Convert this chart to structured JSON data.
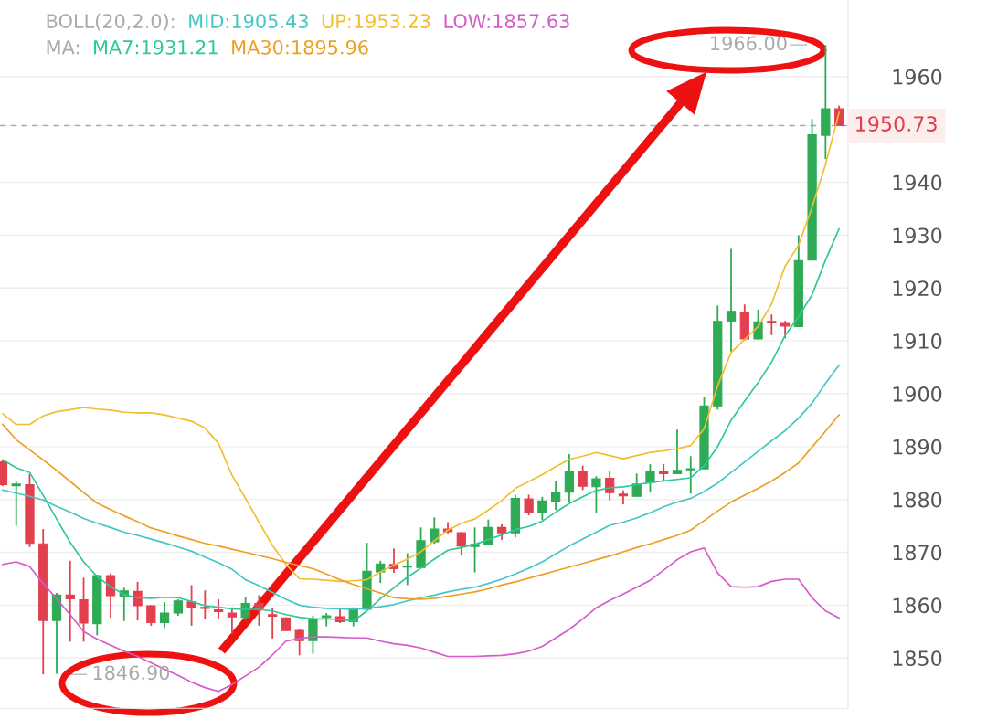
{
  "chart_data": {
    "type": "candlestick",
    "categories": [
      null,
      null,
      null,
      null,
      null,
      null,
      null,
      null,
      null,
      null,
      null,
      null,
      null,
      null,
      null,
      null,
      null,
      null,
      null,
      null,
      null,
      null,
      null,
      null,
      null,
      null,
      null,
      null,
      null,
      null,
      null,
      null,
      null,
      null,
      null,
      null,
      null,
      null,
      null,
      null,
      null,
      null,
      null,
      null,
      null,
      null,
      null,
      null,
      null,
      null,
      null,
      null,
      null,
      null,
      null,
      null,
      null,
      null,
      null,
      null,
      null,
      null,
      null
    ],
    "ohlc": [
      [
        1887.1,
        1887.5,
        1882.5,
        1882.8
      ],
      [
        1882.6,
        1883.4,
        1875.0,
        1882.9
      ],
      [
        1882.8,
        1884.8,
        1871.0,
        1871.7
      ],
      [
        1871.6,
        1874.4,
        1846.9,
        1857.1
      ],
      [
        1857.1,
        1862.3,
        1847.0,
        1861.9
      ],
      [
        1861.9,
        1868.4,
        1853.1,
        1861.2
      ],
      [
        1861.0,
        1865.2,
        1853.1,
        1856.6
      ],
      [
        1856.5,
        1865.7,
        1854.3,
        1865.6
      ],
      [
        1865.6,
        1866.0,
        1857.6,
        1861.8
      ],
      [
        1861.6,
        1863.3,
        1857.0,
        1862.7
      ],
      [
        1862.6,
        1864.4,
        1857.1,
        1859.9
      ],
      [
        1859.9,
        1860.0,
        1856.1,
        1856.7
      ],
      [
        1856.7,
        1860.6,
        1855.7,
        1858.5
      ],
      [
        1858.5,
        1861.1,
        1858.0,
        1860.8
      ],
      [
        1860.6,
        1863.8,
        1856.1,
        1859.5
      ],
      [
        1859.6,
        1862.8,
        1857.3,
        1859.4
      ],
      [
        1859.1,
        1861.1,
        1857.4,
        1858.8
      ],
      [
        1858.5,
        1859.6,
        1854.5,
        1857.8
      ],
      [
        1857.7,
        1861.6,
        1857.1,
        1860.3
      ],
      [
        1860.3,
        1861.9,
        1856.1,
        1859.2
      ],
      [
        1858.2,
        1859.5,
        1853.7,
        1857.9
      ],
      [
        1857.6,
        1857.7,
        1855.2,
        1855.2
      ],
      [
        1855.2,
        1855.5,
        1850.5,
        1853.3
      ],
      [
        1853.3,
        1858.0,
        1850.8,
        1857.2
      ],
      [
        1857.7,
        1858.5,
        1856.0,
        1858.0
      ],
      [
        1857.8,
        1859.2,
        1856.6,
        1856.9
      ],
      [
        1856.9,
        1859.6,
        1856.0,
        1859.3
      ],
      [
        1859.2,
        1871.8,
        1859.2,
        1866.4
      ],
      [
        1866.3,
        1868.4,
        1864.2,
        1867.8
      ],
      [
        1867.7,
        1870.7,
        1866.1,
        1866.9
      ],
      [
        1867.2,
        1869.8,
        1863.8,
        1867.4
      ],
      [
        1867.1,
        1874.7,
        1867.1,
        1872.2
      ],
      [
        1872.0,
        1876.6,
        1871.6,
        1874.4
      ],
      [
        1874.4,
        1875.7,
        1873.6,
        1873.9
      ],
      [
        1873.7,
        1873.8,
        1869.5,
        1871.2
      ],
      [
        1871.1,
        1874.7,
        1866.2,
        1871.5
      ],
      [
        1871.4,
        1876.2,
        1871.3,
        1874.7
      ],
      [
        1874.7,
        1875.3,
        1872.4,
        1873.7
      ],
      [
        1873.7,
        1880.9,
        1872.8,
        1880.2
      ],
      [
        1880.1,
        1880.9,
        1877.0,
        1877.6
      ],
      [
        1877.6,
        1880.5,
        1876.1,
        1879.7
      ],
      [
        1879.6,
        1883.4,
        1878.0,
        1881.4
      ],
      [
        1881.4,
        1888.6,
        1879.6,
        1885.3
      ],
      [
        1885.3,
        1886.4,
        1881.8,
        1882.5
      ],
      [
        1882.4,
        1884.4,
        1877.4,
        1883.9
      ],
      [
        1884.0,
        1885.5,
        1879.8,
        1881.3
      ],
      [
        1881.0,
        1881.7,
        1879.1,
        1880.7
      ],
      [
        1880.6,
        1884.9,
        1880.6,
        1882.9
      ],
      [
        1883.2,
        1886.7,
        1881.3,
        1885.2
      ],
      [
        1885.3,
        1886.7,
        1883.6,
        1884.9
      ],
      [
        1884.9,
        1893.2,
        1884.9,
        1885.5
      ],
      [
        1885.6,
        1888.2,
        1881.1,
        1885.8
      ],
      [
        1885.8,
        1899.4,
        1885.8,
        1897.7
      ],
      [
        1897.7,
        1916.7,
        1897.0,
        1913.7
      ],
      [
        1913.7,
        1927.4,
        1908.0,
        1915.6
      ],
      [
        1915.4,
        1916.9,
        1910.1,
        1910.4
      ],
      [
        1910.4,
        1915.9,
        1910.3,
        1913.6
      ],
      [
        1913.7,
        1915.0,
        1911.1,
        1913.4
      ],
      [
        1913.3,
        1913.8,
        1910.5,
        1912.8
      ],
      [
        1912.7,
        1930.0,
        1912.7,
        1925.2
      ],
      [
        1925.3,
        1952.0,
        1925.3,
        1949.0
      ],
      [
        1948.9,
        1966.0,
        1944.4,
        1953.9
      ],
      [
        1953.9,
        1954.5,
        1950.73,
        1950.73
      ]
    ],
    "series": [
      {
        "type": "line",
        "name": "MID:1905.43",
        "color": "#44c6c4",
        "values": [
          1881.8,
          1881.2,
          1880.6,
          1879.9,
          1878.7,
          1877.6,
          1876.4,
          1875.5,
          1874.7,
          1873.8,
          1873.2,
          1872.5,
          1871.8,
          1871.0,
          1870.2,
          1869.1,
          1868.0,
          1866.8,
          1864.8,
          1863.7,
          1862.4,
          1861.1,
          1860.0,
          1859.6,
          1859.4,
          1859.3,
          1859.2,
          1859.4,
          1859.7,
          1860.1,
          1860.8,
          1861.4,
          1861.9,
          1862.5,
          1863.0,
          1863.4,
          1864.1,
          1864.9,
          1865.9,
          1867.0,
          1868.2,
          1869.7,
          1871.2,
          1872.5,
          1873.8,
          1875.1,
          1875.7,
          1876.5,
          1877.5,
          1878.6,
          1879.5,
          1880.2,
          1881.5,
          1883.1,
          1885.1,
          1887.1,
          1889.1,
          1891.1,
          1893.0,
          1895.4,
          1898.2,
          1902.0,
          1905.4
        ]
      },
      {
        "type": "line",
        "name": "UP:1953.23",
        "color": "#f2bd2e",
        "values": [
          1896.2,
          1894.2,
          1894.2,
          1895.8,
          1896.6,
          1897.0,
          1897.4,
          1897.1,
          1896.9,
          1896.5,
          1896.4,
          1896.4,
          1896.0,
          1895.4,
          1894.8,
          1893.5,
          1890.6,
          1884.6,
          1880.2,
          1875.7,
          1871.3,
          1867.7,
          1865.0,
          1864.9,
          1864.7,
          1864.5,
          1864.6,
          1864.8,
          1866.3,
          1867.6,
          1868.7,
          1870.1,
          1872.2,
          1874.2,
          1875.5,
          1876.3,
          1878.0,
          1879.8,
          1882.1,
          1883.4,
          1884.7,
          1886.2,
          1887.6,
          1888.2,
          1888.9,
          1888.3,
          1887.7,
          1888.3,
          1888.9,
          1889.2,
          1889.6,
          1890.2,
          1893.4,
          1901.5,
          1907.8,
          1910.3,
          1912.7,
          1917.0,
          1924.1,
          1928.1,
          1935.3,
          1943.4,
          1953.2
        ]
      },
      {
        "type": "line",
        "name": "LOW:1857.63",
        "color": "#d45bc9",
        "values": [
          1867.7,
          1868.2,
          1867.3,
          1864.1,
          1861.2,
          1858.2,
          1855.0,
          1853.6,
          1852.4,
          1851.3,
          1850.3,
          1849.1,
          1847.9,
          1846.7,
          1845.4,
          1844.4,
          1843.7,
          1845.0,
          1846.6,
          1848.3,
          1850.6,
          1853.2,
          1853.7,
          1854.0,
          1854.0,
          1853.9,
          1853.8,
          1853.8,
          1853.2,
          1852.7,
          1852.4,
          1851.9,
          1851.1,
          1850.3,
          1850.3,
          1850.3,
          1850.4,
          1850.5,
          1850.8,
          1851.3,
          1852.2,
          1853.8,
          1855.4,
          1857.4,
          1859.5,
          1860.9,
          1862.1,
          1863.4,
          1864.7,
          1866.6,
          1868.6,
          1870.1,
          1870.8,
          1866.1,
          1863.5,
          1863.4,
          1863.5,
          1864.5,
          1864.9,
          1864.9,
          1861.4,
          1858.9,
          1857.6
        ]
      },
      {
        "type": "line",
        "name": "MA7:1931.21",
        "color": "#2ec898",
        "values": [
          1887.5,
          1886.0,
          1885.1,
          1880.8,
          1876.3,
          1871.9,
          1868.2,
          1865.4,
          1863.5,
          1862.0,
          1861.4,
          1861.3,
          1861.5,
          1861.4,
          1860.7,
          1859.9,
          1859.6,
          1859.3,
          1859.2,
          1859.2,
          1858.9,
          1858.2,
          1857.7,
          1857.4,
          1857.4,
          1857.3,
          1857.0,
          1858.9,
          1861.2,
          1863.3,
          1865.3,
          1867.0,
          1868.7,
          1870.4,
          1870.9,
          1871.5,
          1872.4,
          1873.3,
          1874.3,
          1874.9,
          1875.9,
          1877.6,
          1879.2,
          1880.5,
          1881.7,
          1882.2,
          1882.4,
          1882.8,
          1883.2,
          1883.5,
          1883.8,
          1884.1,
          1886.4,
          1890.0,
          1895.0,
          1898.6,
          1902.1,
          1906.0,
          1911.0,
          1914.6,
          1918.7,
          1925.3,
          1931.2
        ]
      },
      {
        "type": "line",
        "name": "MA30:1895.96",
        "color": "#ee9e22",
        "values": [
          1894.2,
          1891.3,
          1889.4,
          1887.5,
          1885.5,
          1883.4,
          1881.3,
          1879.3,
          1878.1,
          1876.9,
          1875.8,
          1874.6,
          1873.9,
          1873.1,
          1872.4,
          1871.7,
          1871.2,
          1870.6,
          1870.0,
          1869.4,
          1868.8,
          1868.1,
          1867.5,
          1866.9,
          1865.9,
          1864.8,
          1863.9,
          1863.1,
          1862.3,
          1861.4,
          1861.2,
          1861.1,
          1861.3,
          1861.7,
          1862.1,
          1862.5,
          1863.1,
          1863.8,
          1864.4,
          1865.1,
          1865.8,
          1866.5,
          1867.2,
          1867.9,
          1868.6,
          1869.3,
          1870.1,
          1870.9,
          1871.6,
          1872.4,
          1873.2,
          1874.2,
          1876.0,
          1877.8,
          1879.5,
          1880.8,
          1882.1,
          1883.5,
          1885.1,
          1886.9,
          1889.9,
          1892.9,
          1896.0
        ]
      }
    ],
    "annotations": [
      "BOLL(20,2.0):",
      "MA:",
      "1966.00",
      "1846.90"
    ],
    "ref_lines": [
      {
        "axis": "y",
        "value": 1950.73,
        "label": "1950.73",
        "color": "#aaaaaa",
        "line_style": "dashed"
      }
    ],
    "ylim": [
      1840.5,
      1974.5
    ],
    "yticks": [
      1850,
      1860,
      1870,
      1880,
      1890,
      1900,
      1910,
      1920,
      1930,
      1940,
      1960
    ],
    "grid": "y",
    "legend": "top",
    "tick_labels": "y"
  }
}
